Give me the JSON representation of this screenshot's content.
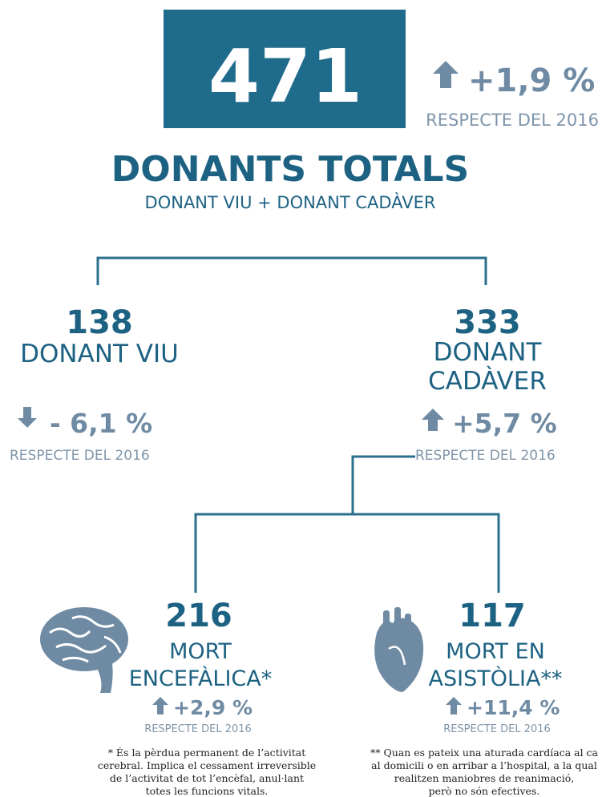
{
  "total": {
    "value": 471,
    "change": "+1,9 %",
    "reference": "RESPECTE DEL 2016",
    "title": "DONANTS TOTALS",
    "subtitle": "DONANT VIU + DONANT CADÀVER"
  },
  "branches": [
    {
      "value": 138,
      "label_lines": [
        "DONANT VIU"
      ],
      "change": "- 6,1 %",
      "reference": "RESPECTE DEL 2016"
    },
    {
      "value": 333,
      "label_lines": [
        "DONANT",
        "CADÀVER"
      ],
      "change": "+5,7 %",
      "reference": "RESPECTE DEL 2016"
    }
  ],
  "subbranches": [
    {
      "value": 216,
      "label_lines": [
        "MORT",
        "ENCEFÀLICA*"
      ],
      "change": "+2,9 %",
      "reference": "RESPECTE DEL 2016",
      "note_lines": [
        "* És la pèrdua permanent de l’activitat",
        "cerebral. Implica el cessament irreversible",
        "de l’activitat de tot l’encèfal, anul·lant",
        "totes les funcions vitals."
      ]
    },
    {
      "value": 117,
      "label_lines": [
        "MORT EN",
        "ASISTÒLIA**"
      ],
      "change": "+11,4 %",
      "reference": "RESPECTE DEL 2016",
      "note_lines": [
        "** Quan es pateix una aturada cardíaca al ca",
        "al domicili o en arribar a l’hospital, a la qual",
        "realitzen maniobres de reanimació,",
        "però no són efectives."
      ]
    }
  ]
}
